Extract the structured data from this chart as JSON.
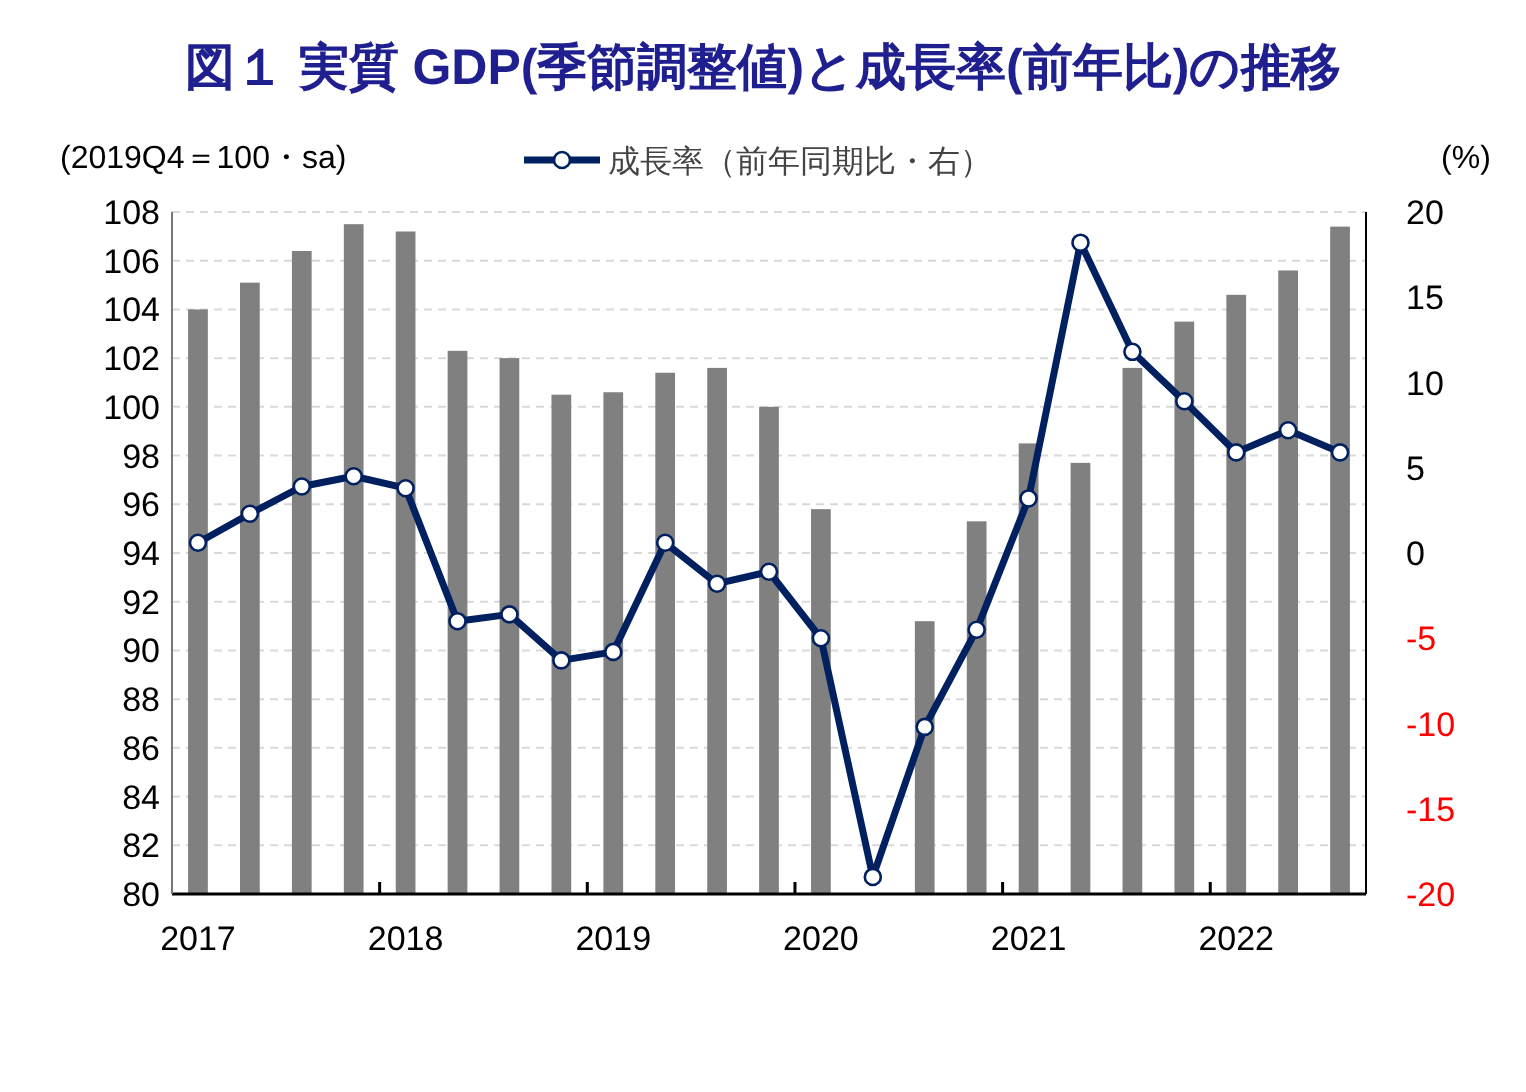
{
  "chart_data": {
    "type": "bar",
    "title": "図１ 実質 GDP(季節調整値)と成長率(前年比)の推移",
    "ylabel": "(2019Q4＝100・sa)",
    "y2label": "(%)",
    "categories": [
      "2017",
      null,
      null,
      null,
      "2018",
      null,
      null,
      null,
      "2019",
      null,
      null,
      null,
      "2020",
      null,
      null,
      null,
      "2021",
      null,
      null,
      null,
      "2022",
      null,
      null
    ],
    "series": [
      {
        "color": "#808080",
        "values": [
          104.0,
          105.1,
          106.4,
          107.5,
          107.2,
          102.3,
          102.0,
          100.5,
          100.6,
          101.4,
          101.6,
          100.0,
          95.8,
          null,
          91.2,
          95.3,
          98.5,
          97.7,
          101.6,
          103.5,
          104.6,
          105.6,
          107.4
        ]
      },
      {
        "type": "line",
        "name": "成長率（前年同期比・右）",
        "axis": "y2",
        "color": "#002060",
        "marker": "circle",
        "values": [
          0.6,
          2.3,
          3.9,
          4.5,
          3.8,
          -4.0,
          -3.6,
          -6.3,
          -5.8,
          0.6,
          -1.8,
          -1.1,
          -5.0,
          -19.0,
          -10.2,
          -4.5,
          3.2,
          18.2,
          11.8,
          8.9,
          5.9,
          7.2,
          5.9
        ]
      }
    ],
    "ylim": [
      80,
      108
    ],
    "yticks": [
      80,
      82,
      84,
      86,
      88,
      90,
      92,
      94,
      96,
      98,
      100,
      102,
      104,
      106,
      108
    ],
    "y2lim": [
      -20,
      20
    ],
    "y2ticks": [
      -20,
      -15,
      -10,
      -5,
      0,
      5,
      10,
      15,
      20
    ],
    "grid": "y",
    "legend": "top"
  }
}
